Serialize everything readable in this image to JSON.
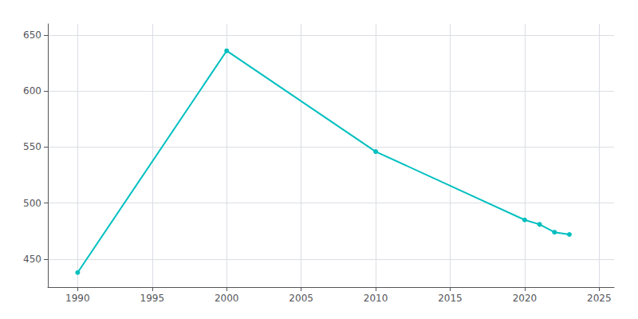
{
  "chart_data": {
    "type": "line",
    "x": [
      1990,
      2000,
      2010,
      2020,
      2021,
      2022,
      2023
    ],
    "values": [
      438,
      636,
      546,
      485,
      481,
      474,
      472
    ],
    "color": "#00BFBF",
    "marker": "circle",
    "xlim": [
      1988,
      2026
    ],
    "ylim": [
      425,
      660
    ],
    "xticks": [
      1990,
      1995,
      2000,
      2005,
      2010,
      2015,
      2020,
      2025
    ],
    "yticks": [
      450,
      500,
      550,
      600,
      650
    ],
    "grid": true
  }
}
